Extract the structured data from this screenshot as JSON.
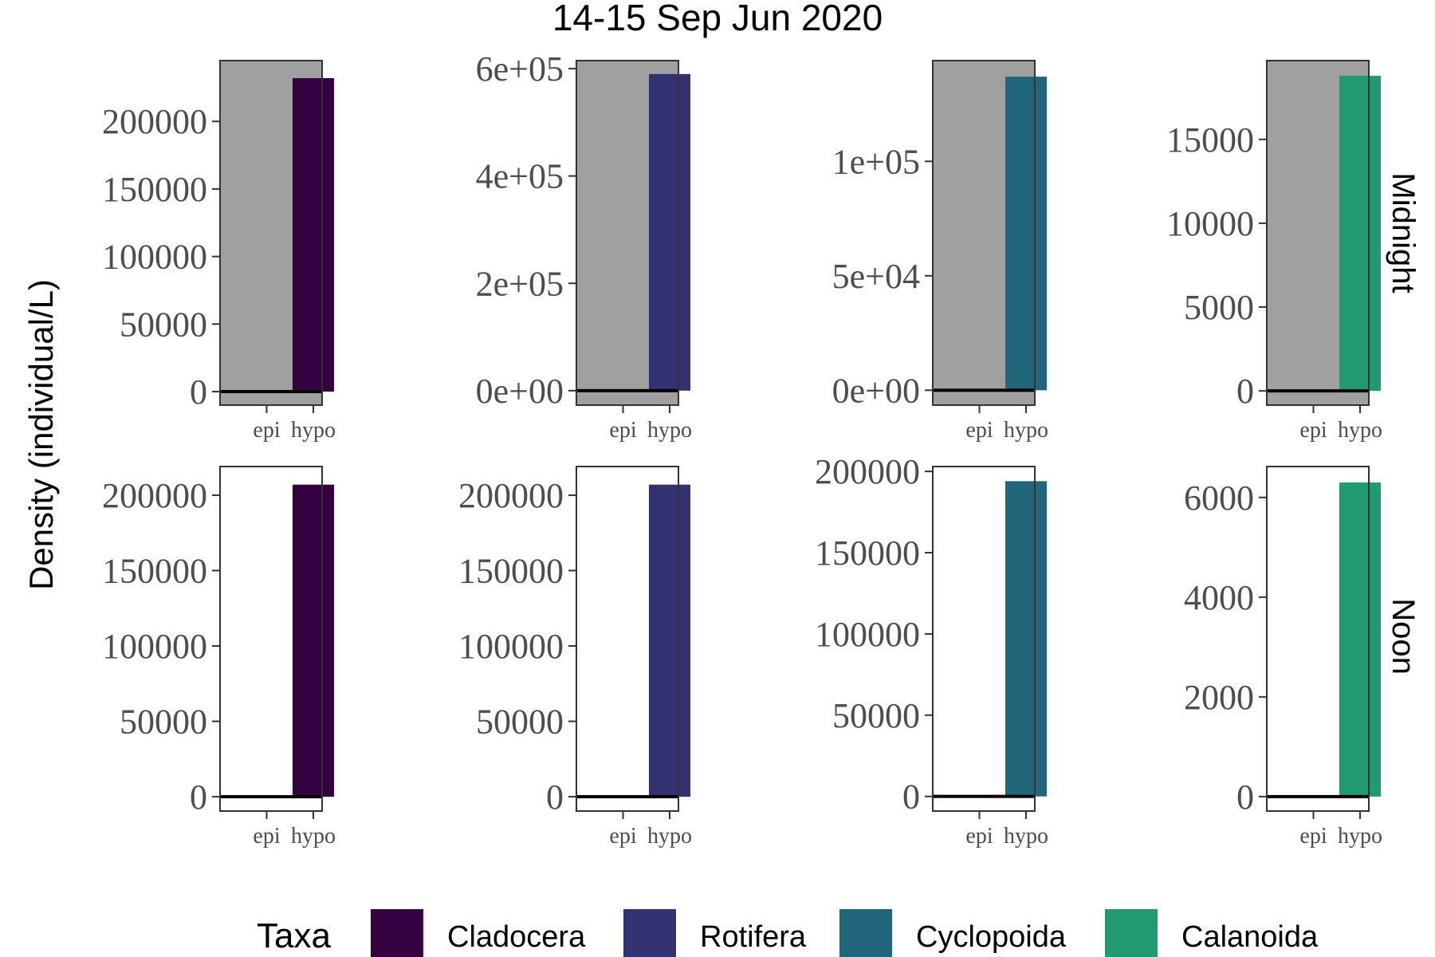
{
  "chart_data": {
    "type": "bar",
    "title": "14-15 Sep Jun 2020",
    "ylabel": "Density (individual/L)",
    "xlabel": "",
    "x_categories": [
      "epi",
      "hypo"
    ],
    "row_labels": [
      "Midnight",
      "Noon"
    ],
    "legend": {
      "title": "Taxa",
      "position": "bottom",
      "entries": [
        {
          "label": "Cladocera",
          "color": "#35003f"
        },
        {
          "label": "Rotifera",
          "color": "#33316f"
        },
        {
          "label": "Cyclopoida",
          "color": "#21667a"
        },
        {
          "label": "Calanoida",
          "color": "#229a71"
        }
      ]
    },
    "panels": [
      {
        "row": "Midnight",
        "taxon": "Cladocera",
        "background": "#a0a0a0",
        "values": {
          "epi": 0,
          "hypo": 232000
        },
        "ylim": [
          -10000,
          245000
        ],
        "yticks": [
          0,
          50000,
          100000,
          150000,
          200000
        ],
        "ytick_labels": [
          "0",
          "50000",
          "100000",
          "150000",
          "200000"
        ]
      },
      {
        "row": "Midnight",
        "taxon": "Rotifera",
        "background": "#a0a0a0",
        "values": {
          "epi": 0,
          "hypo": 590000
        },
        "ylim": [
          -27000,
          615000
        ],
        "yticks": [
          0,
          200000,
          400000,
          600000
        ],
        "ytick_labels": [
          "0e+00",
          "2e+05",
          "4e+05",
          "6e+05"
        ]
      },
      {
        "row": "Midnight",
        "taxon": "Cyclopoida",
        "background": "#a0a0a0",
        "values": {
          "epi": 0,
          "hypo": 137000
        },
        "ylim": [
          -6500,
          144000
        ],
        "yticks": [
          0,
          50000,
          100000
        ],
        "ytick_labels": [
          "0e+00",
          "5e+04",
          "1e+05"
        ]
      },
      {
        "row": "Midnight",
        "taxon": "Calanoida",
        "background": "#a0a0a0",
        "values": {
          "epi": 0,
          "hypo": 18800
        },
        "ylim": [
          -850,
          19700
        ],
        "yticks": [
          0,
          5000,
          10000,
          15000
        ],
        "ytick_labels": [
          "0",
          "5000",
          "10000",
          "15000"
        ]
      },
      {
        "row": "Noon",
        "taxon": "Cladocera",
        "background": "#ffffff",
        "values": {
          "epi": 0,
          "hypo": 207000
        },
        "ylim": [
          -9500,
          219000
        ],
        "yticks": [
          0,
          50000,
          100000,
          150000,
          200000
        ],
        "ytick_labels": [
          "0",
          "50000",
          "100000",
          "150000",
          "200000"
        ]
      },
      {
        "row": "Noon",
        "taxon": "Rotifera",
        "background": "#ffffff",
        "values": {
          "epi": 0,
          "hypo": 207000
        },
        "ylim": [
          -9500,
          219000
        ],
        "yticks": [
          0,
          50000,
          100000,
          150000,
          200000
        ],
        "ytick_labels": [
          "0",
          "50000",
          "100000",
          "150000",
          "200000"
        ]
      },
      {
        "row": "Noon",
        "taxon": "Cyclopoida",
        "background": "#ffffff",
        "values": {
          "epi": 0,
          "hypo": 194000
        },
        "ylim": [
          -9000,
          203000
        ],
        "yticks": [
          0,
          50000,
          100000,
          150000,
          200000
        ],
        "ytick_labels": [
          "0",
          "50000",
          "100000",
          "150000",
          "200000"
        ]
      },
      {
        "row": "Noon",
        "taxon": "Calanoida",
        "background": "#ffffff",
        "values": {
          "epi": 0,
          "hypo": 6300
        },
        "ylim": [
          -290,
          6620
        ],
        "yticks": [
          0,
          2000,
          4000,
          6000
        ],
        "ytick_labels": [
          "0",
          "2000",
          "4000",
          "6000"
        ]
      }
    ]
  }
}
